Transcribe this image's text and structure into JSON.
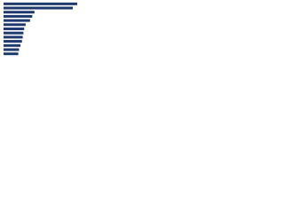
{
  "chart_data": {
    "type": "bar",
    "orientation": "horizontal",
    "categories": [
      null,
      null,
      null,
      null,
      null,
      null,
      null,
      null,
      null,
      null,
      null,
      null,
      null
    ],
    "values": [
      100,
      94,
      42,
      39,
      36,
      30,
      28,
      27,
      26,
      25,
      23,
      21,
      20
    ],
    "color": "#1f3a6e",
    "xlim": [
      0,
      100
    ]
  }
}
